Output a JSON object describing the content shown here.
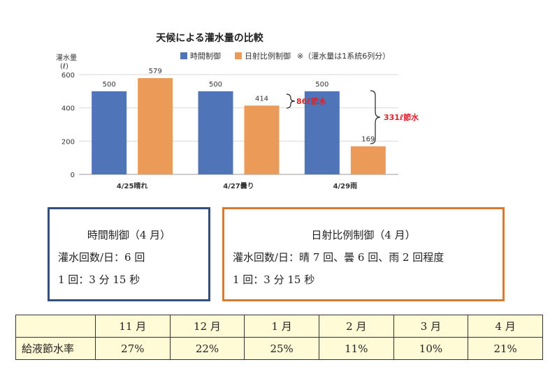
{
  "chart_data": {
    "type": "bar",
    "title": "天候による灌水量の比較",
    "ylabel": "灌水量",
    "yunit": "(ℓ)",
    "ylim": [
      0,
      600
    ],
    "yticks": [
      "0",
      "200",
      "400",
      "600"
    ],
    "grid": true,
    "legend_position": "top-right",
    "legend_note": "※（灌水量は1系統6列分）",
    "categories": [
      "4/25晴れ",
      "4/27曇り",
      "4/29雨"
    ],
    "series": [
      {
        "name": "時間制御",
        "color": "#4f74b8",
        "values": [
          500,
          500,
          500
        ],
        "labels": [
          "500",
          "500",
          "500"
        ]
      },
      {
        "name": "日射比例制御",
        "color": "#eb9a58",
        "values": [
          579,
          414,
          169
        ],
        "labels": [
          "579",
          "414",
          "169"
        ]
      }
    ],
    "annotations": [
      {
        "text": "86ℓ節水",
        "color": "#d9242b"
      },
      {
        "text": "331ℓ節水",
        "color": "#d9242b"
      }
    ]
  },
  "boxes": {
    "left": {
      "title": "時間制御（4 月）",
      "line1": "灌水回数/日：6 回",
      "line2": "1 回：3 分 15 秒",
      "border_color": "#34507a"
    },
    "right": {
      "title": "日射比例制御（4 月）",
      "line1": "灌水回数/日：晴 7 回、曇 6 回、雨 2 回程度",
      "line2": "1 回：3 分 15 秒",
      "border_color": "#d67a2f"
    }
  },
  "table": {
    "row_label": "給液節水率",
    "months": [
      "11 月",
      "12 月",
      "1 月",
      "2 月",
      "3 月",
      "4 月"
    ],
    "rates": [
      "27%",
      "22%",
      "25%",
      "11%",
      "10%",
      "21%"
    ],
    "background": "#fffbd6"
  }
}
